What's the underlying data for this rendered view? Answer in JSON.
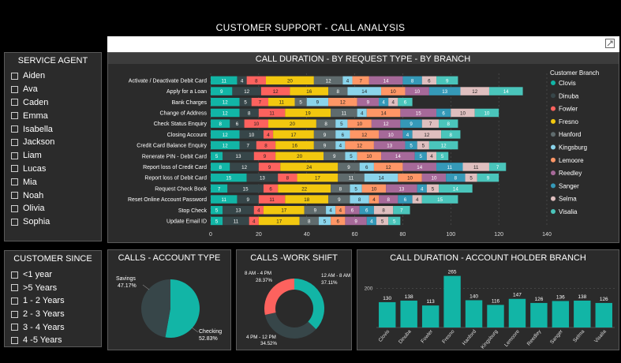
{
  "page": {
    "title": "CUSTOMER SUPPORT - CALL ANALYSIS"
  },
  "colors": {
    "Clovis": "#12b5a6",
    "Dinuba": "#374649",
    "Fowler": "#fd625e",
    "Fresno": "#f2c80f",
    "Hanford": "#5f6b6d",
    "Kingsburg": "#8ad4eb",
    "Lemoore": "#fe9666",
    "Reedley": "#a66999",
    "Sanger": "#3599b8",
    "Selma": "#dfbfbf",
    "Visalia": "#4ac5bb"
  },
  "service_agent": {
    "title": "SERVICE AGENT",
    "items": [
      "Aiden",
      "Ava",
      "Caden",
      "Emma",
      "Isabella",
      "Jackson",
      "Liam",
      "Lucas",
      "Mia",
      "Noah",
      "Olivia",
      "Sophia"
    ]
  },
  "customer_since": {
    "title": "CUSTOMER SINCE",
    "items": [
      "<1 year",
      ">5 Years",
      "1 - 2 Years",
      "2 - 3 Years",
      "3 - 4 Years",
      "4 -5 Years"
    ]
  },
  "chart_data": [
    {
      "type": "bar",
      "orientation": "horizontal",
      "stacked": true,
      "title": "CALL DURATION - BY REQUEST TYPE - BY BRANCH",
      "legend_title": "Customer Branch",
      "legend_position": "right",
      "xlim": [
        0,
        140
      ],
      "xticks": [
        0,
        20,
        40,
        60,
        80,
        100,
        120,
        140
      ],
      "categories": [
        "Activate / Deactivate Debit Card",
        "Apply for a Loan",
        "Bank Charges",
        "Change of Address",
        "Check Status Enquiry",
        "Closing Account",
        "Credit Card Balance Enquiry",
        "Renerate PIN - Debit Card",
        "Report loss of Credit Card",
        "Report loss of Debit Card",
        "Request Check Book",
        "Reset Online Account Password",
        "Stop Check",
        "Update Email ID"
      ],
      "series": [
        {
          "name": "Clovis",
          "values": [
            11,
            9,
            12,
            12,
            8,
            12,
            12,
            5,
            8,
            15,
            7,
            11,
            5,
            5
          ]
        },
        {
          "name": "Dinuba",
          "values": [
            4,
            12,
            5,
            8,
            6,
            10,
            7,
            13,
            12,
            13,
            15,
            9,
            13,
            11
          ]
        },
        {
          "name": "Fowler",
          "values": [
            8,
            12,
            7,
            11,
            10,
            4,
            8,
            9,
            9,
            8,
            6,
            11,
            4,
            4
          ]
        },
        {
          "name": "Fresno",
          "values": [
            20,
            16,
            11,
            19,
            20,
            17,
            16,
            20,
            24,
            17,
            22,
            18,
            17,
            17
          ]
        },
        {
          "name": "Hanford",
          "values": [
            12,
            8,
            5,
            11,
            8,
            9,
            9,
            9,
            9,
            11,
            8,
            9,
            9,
            8
          ]
        },
        {
          "name": "Kingsburg",
          "values": [
            4,
            14,
            9,
            4,
            5,
            6,
            4,
            5,
            6,
            14,
            5,
            8,
            4,
            5
          ]
        },
        {
          "name": "Lemoore",
          "values": [
            7,
            10,
            12,
            14,
            10,
            12,
            12,
            10,
            12,
            10,
            10,
            4,
            4,
            6
          ]
        },
        {
          "name": "Reedley",
          "values": [
            14,
            10,
            9,
            15,
            12,
            10,
            13,
            14,
            14,
            10,
            13,
            8,
            6,
            9
          ]
        },
        {
          "name": "Sanger",
          "values": [
            8,
            13,
            4,
            6,
            9,
            4,
            5,
            5,
            11,
            8,
            4,
            6,
            6,
            4
          ]
        },
        {
          "name": "Selma",
          "values": [
            6,
            12,
            4,
            10,
            7,
            12,
            5,
            4,
            11,
            5,
            5,
            4,
            8,
            5
          ]
        },
        {
          "name": "Visalia",
          "values": [
            9,
            14,
            6,
            10,
            8,
            8,
            12,
            5,
            7,
            9,
            14,
            15,
            7,
            5
          ]
        }
      ]
    },
    {
      "type": "pie",
      "title": "CALLS - ACCOUNT TYPE",
      "slices": [
        {
          "label": "Savings",
          "value": 47.17,
          "value_label": "47.17%",
          "color": "#374649"
        },
        {
          "label": "Checking",
          "value": 52.83,
          "value_label": "52.83%",
          "color": "#12b5a6"
        }
      ]
    },
    {
      "type": "pie",
      "donut": true,
      "title": "CALLS -WORK SHIFT",
      "slices": [
        {
          "label": "12 AM - 8 AM",
          "value": 37.11,
          "value_label": "37.11%",
          "color": "#12b5a6"
        },
        {
          "label": "4 PM - 12 PM",
          "value": 34.52,
          "value_label": "34.52%",
          "color": "#374649"
        },
        {
          "label": "8 AM - 4 PM",
          "value": 28.37,
          "value_label": "28.37%",
          "color": "#fd625e"
        }
      ]
    },
    {
      "type": "bar",
      "title": "CALL DURATION - ACCOUNT HOLDER BRANCH",
      "ylim": [
        0,
        300
      ],
      "yticks": [
        200
      ],
      "categories": [
        "Clovis",
        "Dinuba",
        "Fowler",
        "Fresno",
        "Hanford",
        "Kingsburg",
        "Lemoore",
        "Reedley",
        "Sanger",
        "Selma",
        "Visalia"
      ],
      "values": [
        130,
        138,
        113,
        265,
        140,
        116,
        147,
        126,
        136,
        138,
        126
      ],
      "color": "#12b5a6"
    }
  ]
}
